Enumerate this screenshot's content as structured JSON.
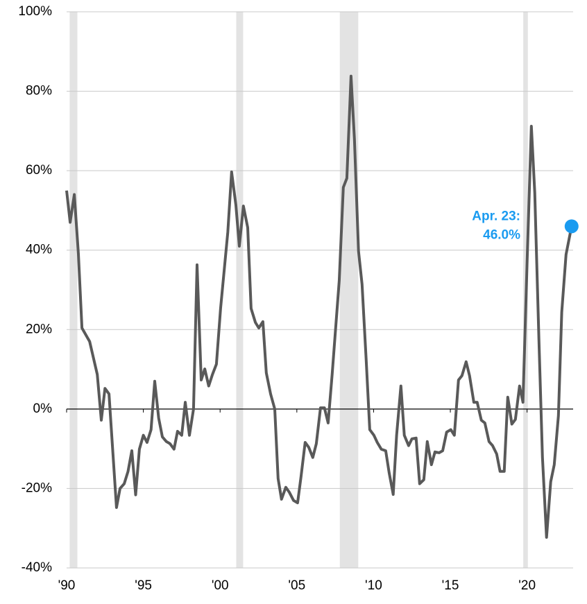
{
  "chart_data": {
    "type": "line",
    "xlim": [
      1990,
      2023
    ],
    "ylim": [
      -40,
      100
    ],
    "xticks": [
      {
        "value": 1990,
        "label": "'90"
      },
      {
        "value": 1995,
        "label": "'95"
      },
      {
        "value": 2000,
        "label": "'00"
      },
      {
        "value": 2005,
        "label": "'05"
      },
      {
        "value": 2010,
        "label": "'10"
      },
      {
        "value": 2015,
        "label": "'15"
      },
      {
        "value": 2020,
        "label": "'20"
      }
    ],
    "yticks": [
      {
        "value": -40,
        "label": "-40%"
      },
      {
        "value": -20,
        "label": "-20%"
      },
      {
        "value": 0,
        "label": "0%"
      },
      {
        "value": 20,
        "label": "20%"
      },
      {
        "value": 40,
        "label": "40%"
      },
      {
        "value": 60,
        "label": "60%"
      },
      {
        "value": 80,
        "label": "80%"
      },
      {
        "value": 100,
        "label": "100%"
      }
    ],
    "grid": true,
    "recessions": [
      [
        1990.2,
        1990.7
      ],
      [
        2001.05,
        2001.5
      ],
      [
        2007.8,
        2009.0
      ],
      [
        2019.75,
        2020.05
      ]
    ],
    "recession_color": "#e3e3e3",
    "x": [
      1990.0,
      1990.23,
      1990.5,
      1990.77,
      1991.0,
      1991.5,
      1992.0,
      1992.26,
      1992.5,
      1992.76,
      1993.25,
      1993.48,
      1993.75,
      1994.0,
      1994.25,
      1994.5,
      1994.74,
      1995.0,
      1995.24,
      1995.5,
      1995.74,
      1996.0,
      1996.24,
      1996.5,
      1996.73,
      1997.0,
      1997.23,
      1997.5,
      1997.73,
      1998.0,
      1998.27,
      1998.5,
      1998.77,
      1999.0,
      1999.26,
      1999.5,
      1999.76,
      2000.03,
      2000.5,
      2000.75,
      2001.03,
      2001.25,
      2001.52,
      2001.8,
      2002.02,
      2002.3,
      2002.52,
      2002.79,
      2003.01,
      2003.29,
      2003.56,
      2003.78,
      2004.0,
      2004.28,
      2004.5,
      2004.78,
      2005.05,
      2005.27,
      2005.54,
      2005.77,
      2006.04,
      2006.27,
      2006.54,
      2006.8,
      2007.04,
      2007.3,
      2007.76,
      2008.03,
      2008.26,
      2008.53,
      2008.75,
      2009.02,
      2009.25,
      2009.52,
      2009.75,
      2010.02,
      2010.24,
      2010.5,
      2010.79,
      2011.01,
      2011.28,
      2011.5,
      2011.78,
      2012.0,
      2012.28,
      2012.5,
      2012.77,
      2013.0,
      2013.27,
      2013.5,
      2013.77,
      2014.0,
      2014.27,
      2014.5,
      2014.76,
      2015.03,
      2015.26,
      2015.53,
      2015.76,
      2016.03,
      2016.25,
      2016.53,
      2016.75,
      2017.02,
      2017.25,
      2017.52,
      2017.75,
      2018.02,
      2018.24,
      2018.51,
      2018.74,
      2019.01,
      2019.24,
      2019.51,
      2019.73,
      2020.0,
      2020.28,
      2020.5,
      2020.77,
      2021.0,
      2021.27,
      2021.54,
      2021.77,
      2022.04,
      2022.26,
      2022.54,
      2022.9
    ],
    "series": [
      {
        "color": "#595959",
        "values": [
          55,
          47,
          54,
          39,
          20.4,
          17,
          8.7,
          -2.8,
          5.2,
          3.8,
          -24.8,
          -20,
          -18.8,
          -15.7,
          -10.5,
          -21.6,
          -10.1,
          -6.6,
          -8.4,
          -5.2,
          7.0,
          -2.3,
          -7,
          -8.2,
          -8.7,
          -10.1,
          -5.6,
          -6.6,
          1.7,
          -6.6,
          0,
          36.3,
          7.3,
          10.1,
          5.8,
          8.7,
          11.3,
          25.3,
          44.5,
          59.7,
          51.3,
          41,
          51.1,
          45.7,
          25.3,
          21.8,
          20.4,
          22,
          9.1,
          3.8,
          0,
          -17.5,
          -22.7,
          -19.7,
          -20.9,
          -23,
          -23.6,
          -17.1,
          -8.4,
          -9.6,
          -12.2,
          -8.7,
          0.3,
          0.3,
          -3.5,
          8.7,
          32.3,
          55.8,
          58.1,
          83.8,
          68,
          39.8,
          31.4,
          12.2,
          -5.2,
          -6.6,
          -8.4,
          -10.1,
          -10.5,
          -16,
          -21.5,
          -6.6,
          5.8,
          -6.6,
          -9.2,
          -7.5,
          -7.3,
          -18.8,
          -17.8,
          -8.2,
          -14,
          -10.8,
          -11,
          -10.5,
          -5.8,
          -5.2,
          -6.6,
          7.3,
          8.4,
          11.9,
          8.4,
          1.7,
          1.7,
          -2.8,
          -3.5,
          -8.2,
          -9.2,
          -11.3,
          -15.7,
          -15.7,
          3,
          -3.8,
          -2.6,
          5.8,
          1.7,
          36.6,
          71.2,
          54.5,
          17.5,
          -12.2,
          -32.3,
          -18.3,
          -14,
          -1.7,
          24.4,
          38.9,
          46.0
        ]
      }
    ],
    "annotation": {
      "lines": [
        "Apr. 23:",
        "46.0%"
      ],
      "color": "#1a9bf0"
    }
  }
}
